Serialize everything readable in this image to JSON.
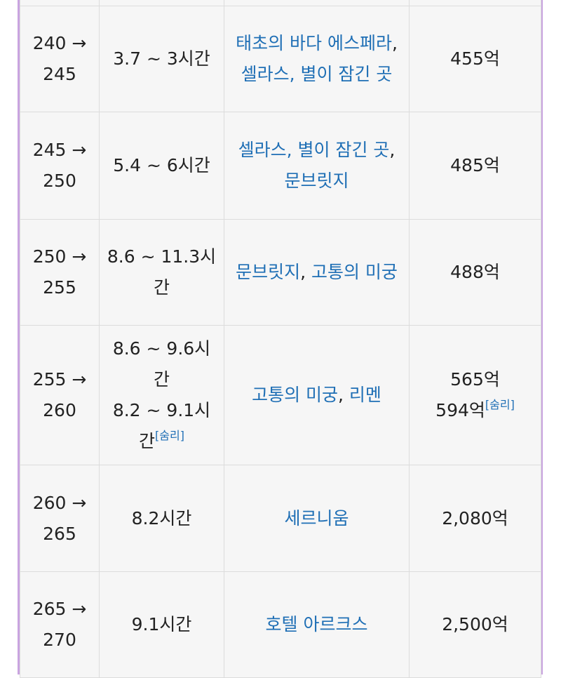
{
  "table": {
    "rows": [
      {
        "level": "",
        "time": [
          "",
          ""
        ],
        "maps": [],
        "exp": [
          ""
        ]
      },
      {
        "level": "240 → 245",
        "time": [
          "3.7 ~ 3시간"
        ],
        "maps": [
          "태초의 바다 에스페라",
          "셀라스, 별이 잠긴 곳"
        ],
        "exp": [
          "455억"
        ]
      },
      {
        "level": "245 → 250",
        "time": [
          "5.4 ~ 6시간"
        ],
        "maps": [
          "셀라스, 별이 잠긴 곳",
          "문브릿지"
        ],
        "exp": [
          "485억"
        ]
      },
      {
        "level": "250 → 255",
        "time": [
          "8.6 ~ 11.3시간"
        ],
        "maps": [
          "문브릿지",
          "고통의 미궁"
        ],
        "exp": [
          "488억"
        ]
      },
      {
        "level": "255 → 260",
        "time": [
          "8.6 ~ 9.6시간",
          "8.2 ~ 9.1시간"
        ],
        "maps": [
          "고통의 미궁",
          "리멘"
        ],
        "exp": [
          "565억",
          "594억"
        ]
      },
      {
        "level": "260 → 265",
        "time": [
          "8.2시간"
        ],
        "maps": [
          "세르니움"
        ],
        "exp": [
          "2,080억"
        ]
      },
      {
        "level": "265 → 270",
        "time": [
          "9.1시간"
        ],
        "maps": [
          "호텔 아르크스"
        ],
        "exp": [
          "2,500억"
        ]
      }
    ],
    "footnote": "[숨리]"
  },
  "colors": {
    "link": "#1f6fb5",
    "frame_border": "#c9a4e0",
    "cell_bg": "#f6f6f6",
    "grid": "#dcdcdc"
  }
}
